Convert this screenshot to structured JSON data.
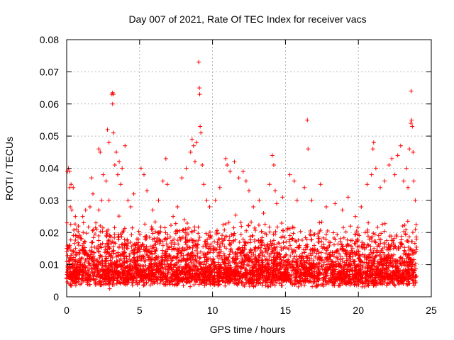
{
  "chart_data": {
    "type": "scatter",
    "title": "Day 007 of 2021, Rate Of TEC Index for receiver vacs",
    "xlabel": "GPS time / hours",
    "ylabel": "ROTI / TECUs",
    "xlim": [
      0,
      25
    ],
    "ylim": [
      0,
      0.08
    ],
    "xticks": [
      0,
      5,
      10,
      15,
      20,
      25
    ],
    "yticks": [
      0,
      0.01,
      0.02,
      0.03,
      0.04,
      0.05,
      0.06,
      0.07,
      0.08
    ],
    "xtick_labels": [
      "0",
      "5",
      "10",
      "15",
      "20",
      "25"
    ],
    "ytick_labels": [
      "0",
      "0.01",
      "0.02",
      "0.03",
      "0.04",
      "0.05",
      "0.06",
      "0.07",
      "0.08"
    ],
    "grid": true,
    "marker": "+",
    "color": "#ff0000",
    "bulk_band": {
      "x_range": [
        0,
        24
      ],
      "typical_y": [
        0.003,
        0.022
      ]
    },
    "points": [
      [
        0.02,
        0.023
      ],
      [
        0.05,
        0.039
      ],
      [
        0.12,
        0.04
      ],
      [
        0.2,
        0.039
      ],
      [
        0.22,
        0.034
      ],
      [
        0.3,
        0.035
      ],
      [
        0.45,
        0.034
      ],
      [
        0.25,
        0.028
      ],
      [
        0.35,
        0.027
      ],
      [
        0.6,
        0.025
      ],
      [
        0.8,
        0.022
      ],
      [
        1.1,
        0.025
      ],
      [
        1.3,
        0.027
      ],
      [
        1.6,
        0.028
      ],
      [
        1.7,
        0.037
      ],
      [
        1.8,
        0.032
      ],
      [
        2.0,
        0.023
      ],
      [
        2.2,
        0.027
      ],
      [
        2.2,
        0.046
      ],
      [
        2.3,
        0.045
      ],
      [
        2.4,
        0.03
      ],
      [
        2.5,
        0.038
      ],
      [
        2.7,
        0.036
      ],
      [
        2.8,
        0.052
      ],
      [
        2.9,
        0.048
      ],
      [
        2.9,
        0.03
      ],
      [
        2.95,
        0.0025
      ],
      [
        3.1,
        0.063
      ],
      [
        3.15,
        0.0635
      ],
      [
        3.2,
        0.063
      ],
      [
        3.15,
        0.06
      ],
      [
        3.2,
        0.051
      ],
      [
        3.3,
        0.041
      ],
      [
        3.4,
        0.045
      ],
      [
        3.5,
        0.038
      ],
      [
        3.6,
        0.042
      ],
      [
        3.7,
        0.035
      ],
      [
        3.8,
        0.04
      ],
      [
        4.0,
        0.047
      ],
      [
        4.2,
        0.03
      ],
      [
        4.4,
        0.028
      ],
      [
        4.6,
        0.032
      ],
      [
        5.1,
        0.04
      ],
      [
        5.3,
        0.038
      ],
      [
        5.5,
        0.033
      ],
      [
        5.9,
        0.027
      ],
      [
        6.3,
        0.03
      ],
      [
        6.6,
        0.036
      ],
      [
        6.8,
        0.043
      ],
      [
        6.9,
        0.035
      ],
      [
        7.3,
        0.025
      ],
      [
        7.6,
        0.028
      ],
      [
        7.9,
        0.037
      ],
      [
        8.2,
        0.04
      ],
      [
        8.5,
        0.045
      ],
      [
        8.6,
        0.049
      ],
      [
        8.7,
        0.047
      ],
      [
        8.8,
        0.042
      ],
      [
        8.9,
        0.048
      ],
      [
        9.05,
        0.073
      ],
      [
        9.1,
        0.065
      ],
      [
        9.12,
        0.063
      ],
      [
        9.15,
        0.053
      ],
      [
        9.2,
        0.051
      ],
      [
        9.3,
        0.041
      ],
      [
        9.4,
        0.035
      ],
      [
        9.6,
        0.03
      ],
      [
        9.8,
        0.028
      ],
      [
        10.2,
        0.03
      ],
      [
        10.5,
        0.034
      ],
      [
        10.9,
        0.043
      ],
      [
        11.0,
        0.041
      ],
      [
        11.2,
        0.039
      ],
      [
        11.5,
        0.042
      ],
      [
        11.8,
        0.037
      ],
      [
        12.1,
        0.039
      ],
      [
        12.3,
        0.036
      ],
      [
        12.5,
        0.033
      ],
      [
        12.8,
        0.028
      ],
      [
        13.2,
        0.03
      ],
      [
        13.5,
        0.026
      ],
      [
        13.9,
        0.035
      ],
      [
        14.1,
        0.044
      ],
      [
        14.2,
        0.041
      ],
      [
        14.3,
        0.033
      ],
      [
        14.4,
        0.029
      ],
      [
        14.8,
        0.031
      ],
      [
        15.3,
        0.038
      ],
      [
        15.6,
        0.036
      ],
      [
        15.8,
        0.03
      ],
      [
        16.3,
        0.034
      ],
      [
        16.5,
        0.055
      ],
      [
        16.55,
        0.046
      ],
      [
        16.8,
        0.03
      ],
      [
        17.4,
        0.035
      ],
      [
        17.8,
        0.028
      ],
      [
        18.4,
        0.029
      ],
      [
        18.9,
        0.027
      ],
      [
        19.3,
        0.031
      ],
      [
        19.8,
        0.025
      ],
      [
        20.2,
        0.028
      ],
      [
        20.6,
        0.035
      ],
      [
        20.9,
        0.038
      ],
      [
        21.0,
        0.046
      ],
      [
        21.05,
        0.048
      ],
      [
        21.2,
        0.04
      ],
      [
        21.5,
        0.034
      ],
      [
        21.8,
        0.036
      ],
      [
        22.1,
        0.041
      ],
      [
        22.3,
        0.043
      ],
      [
        22.5,
        0.038
      ],
      [
        22.7,
        0.044
      ],
      [
        22.9,
        0.047
      ],
      [
        23.1,
        0.036
      ],
      [
        23.3,
        0.04
      ],
      [
        23.4,
        0.034
      ],
      [
        23.5,
        0.046
      ],
      [
        23.6,
        0.054
      ],
      [
        23.65,
        0.055
      ],
      [
        23.7,
        0.053
      ],
      [
        23.62,
        0.064
      ],
      [
        23.75,
        0.045
      ],
      [
        23.8,
        0.036
      ],
      [
        23.9,
        0.03
      ]
    ]
  }
}
